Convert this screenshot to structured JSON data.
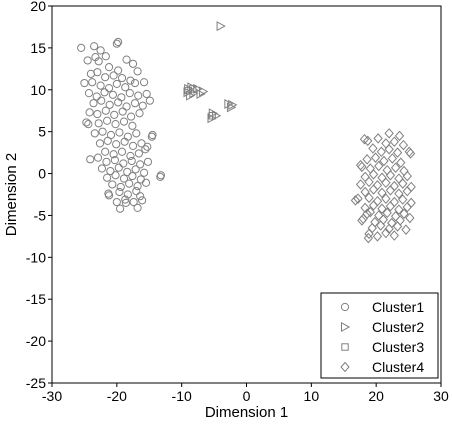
{
  "chart_data": {
    "type": "scatter",
    "title": "",
    "xlabel": "Dimension 1",
    "ylabel": "Dimension 2",
    "xlim": [
      -30,
      30
    ],
    "ylim": [
      -25,
      20
    ],
    "xticks": [
      -30,
      -20,
      -10,
      0,
      10,
      20,
      30
    ],
    "yticks": [
      -25,
      -20,
      -15,
      -10,
      -5,
      0,
      5,
      10,
      15,
      20
    ],
    "grid": false,
    "legend_position": "bottom-right",
    "marker_color": "#808080",
    "series": [
      {
        "name": "Cluster1",
        "marker": "circle",
        "points": [
          [
            -25.5,
            15
          ],
          [
            -23.5,
            15.2
          ],
          [
            -22.5,
            14.7
          ],
          [
            -21.7,
            14
          ],
          [
            -20,
            15.5
          ],
          [
            -19.8,
            15.7
          ],
          [
            -24.5,
            13.5
          ],
          [
            -23.3,
            13.9
          ],
          [
            -22.8,
            13.4
          ],
          [
            -21.2,
            12.7
          ],
          [
            -19.8,
            12.3
          ],
          [
            -18.5,
            13.6
          ],
          [
            -17.5,
            13.1
          ],
          [
            -24,
            11.9
          ],
          [
            -23,
            12.1
          ],
          [
            -21.8,
            11.5
          ],
          [
            -20.5,
            11.7
          ],
          [
            -19.2,
            11.4
          ],
          [
            -17.9,
            11.1
          ],
          [
            -16.8,
            12.2
          ],
          [
            -25,
            10.8
          ],
          [
            -23.8,
            10.9
          ],
          [
            -22.5,
            10.5
          ],
          [
            -21.2,
            10.2
          ],
          [
            -20,
            10.7
          ],
          [
            -18.7,
            10.3
          ],
          [
            -17.2,
            10.8
          ],
          [
            -15.8,
            10.9
          ],
          [
            -24.3,
            9.6
          ],
          [
            -23.1,
            9.2
          ],
          [
            -21.9,
            9.7
          ],
          [
            -20.6,
            9.4
          ],
          [
            -19.3,
            9.1
          ],
          [
            -18,
            9.6
          ],
          [
            -16.7,
            9.3
          ],
          [
            -15.4,
            9.5
          ],
          [
            -14.9,
            8.7
          ],
          [
            -23.6,
            8.4
          ],
          [
            -22.4,
            8.7
          ],
          [
            -21.1,
            8.2
          ],
          [
            -19.8,
            8.5
          ],
          [
            -18.5,
            8
          ],
          [
            -17.2,
            8.4
          ],
          [
            -16,
            8.1
          ],
          [
            -24.2,
            7.3
          ],
          [
            -23,
            7.1
          ],
          [
            -21.7,
            7.5
          ],
          [
            -20.4,
            7
          ],
          [
            -19.1,
            7.4
          ],
          [
            -17.8,
            6.8
          ],
          [
            -16.5,
            7.2
          ],
          [
            -22.8,
            6
          ],
          [
            -21.5,
            6.3
          ],
          [
            -20.2,
            5.9
          ],
          [
            -18.9,
            6.2
          ],
          [
            -17.6,
            5.7
          ],
          [
            -24.4,
            5.9
          ],
          [
            -24.7,
            6.1
          ],
          [
            -23.4,
            4.8
          ],
          [
            -22.2,
            5
          ],
          [
            -20.9,
            4.6
          ],
          [
            -19.6,
            4.9
          ],
          [
            -18.3,
            4.4
          ],
          [
            -17,
            4.8
          ],
          [
            -14.5,
            4.6
          ],
          [
            -14.6,
            4.4
          ],
          [
            -22.6,
            3.6
          ],
          [
            -21.4,
            3.9
          ],
          [
            -20.1,
            3.5
          ],
          [
            -18.8,
            3.8
          ],
          [
            -17.5,
            3.3
          ],
          [
            -16.2,
            3.6
          ],
          [
            -15.3,
            3.2
          ],
          [
            -21.8,
            2.6
          ],
          [
            -20.5,
            2.3
          ],
          [
            -19.2,
            2.6
          ],
          [
            -17.9,
            2.1
          ],
          [
            -16.6,
            2.4
          ],
          [
            -15.6,
            2.9
          ],
          [
            -24.1,
            1.7
          ],
          [
            -22.9,
            1.9
          ],
          [
            -21.6,
            1.4
          ],
          [
            -20.3,
            1.6
          ],
          [
            -19,
            1.2
          ],
          [
            -17.7,
            1.5
          ],
          [
            -16.4,
            1.1
          ],
          [
            -15.2,
            1.4
          ],
          [
            -22.3,
            0.6
          ],
          [
            -21,
            0.3
          ],
          [
            -19.7,
            0.7
          ],
          [
            -18.4,
            0.2
          ],
          [
            -17.1,
            0.5
          ],
          [
            -15.8,
            0.1
          ],
          [
            -21.5,
            -0.5
          ],
          [
            -20.2,
            -0.2
          ],
          [
            -18.9,
            -0.6
          ],
          [
            -17.6,
            -0.3
          ],
          [
            -16.3,
            -0.7
          ],
          [
            -13.2,
            -0.2
          ],
          [
            -13.3,
            -0.4
          ],
          [
            -20.7,
            -1.3
          ],
          [
            -19.4,
            -1.6
          ],
          [
            -18.1,
            -1.2
          ],
          [
            -16.8,
            -1.5
          ],
          [
            -15.5,
            -1.1
          ],
          [
            -21.3,
            -2.4
          ],
          [
            -21.2,
            -2.6
          ],
          [
            -19.6,
            -2.2
          ],
          [
            -18.3,
            -2.5
          ],
          [
            -17,
            -2.1
          ],
          [
            -16.4,
            -2.7
          ],
          [
            -20,
            -3.4
          ],
          [
            -18.7,
            -3.1
          ],
          [
            -18.6,
            -3.5
          ],
          [
            -17.4,
            -3.4
          ],
          [
            -16.1,
            -3.2
          ],
          [
            -19.5,
            -4.2
          ],
          [
            -16.8,
            -4.1
          ]
        ]
      },
      {
        "name": "Cluster2",
        "marker": "triangle-right",
        "points": [
          [
            -4,
            17.6
          ],
          [
            -9,
            10.1
          ],
          [
            -8.5,
            10.3
          ],
          [
            -7.6,
            10.1
          ],
          [
            -6.7,
            9.8
          ],
          [
            -8.2,
            9.6
          ],
          [
            -7.1,
            9.5
          ],
          [
            -9.1,
            9.7
          ],
          [
            -8.7,
            9.3
          ],
          [
            -5.2,
            7.2
          ],
          [
            -4.7,
            6.9
          ],
          [
            -5.4,
            6.6
          ],
          [
            -2.8,
            8.3
          ],
          [
            -2.2,
            8.2
          ],
          [
            -2.4,
            7.9
          ]
        ]
      },
      {
        "name": "Cluster3",
        "marker": "square",
        "points": [
          [
            -9,
            9.9
          ],
          [
            -8.3,
            10.1
          ],
          [
            -5.3,
            6.9
          ]
        ]
      },
      {
        "name": "Cluster4",
        "marker": "diamond",
        "points": [
          [
            22,
            4.8
          ],
          [
            23.6,
            4.5
          ],
          [
            18.2,
            4.1
          ],
          [
            18.7,
            3.9
          ],
          [
            20.3,
            4.2
          ],
          [
            21.5,
            3.6
          ],
          [
            22.8,
            3.8
          ],
          [
            24.2,
            3.4
          ],
          [
            19.5,
            3
          ],
          [
            20.8,
            2.6
          ],
          [
            22,
            2.9
          ],
          [
            23.3,
            2.5
          ],
          [
            25.1,
            2.6
          ],
          [
            25.3,
            2.4
          ],
          [
            18.6,
            1.7
          ],
          [
            19.9,
            1.9
          ],
          [
            21.2,
            1.5
          ],
          [
            22.5,
            1.8
          ],
          [
            23.8,
            1.3
          ],
          [
            17.6,
            1
          ],
          [
            17.8,
            0.8
          ],
          [
            19.1,
            0.6
          ],
          [
            20.4,
            0.9
          ],
          [
            21.7,
            0.4
          ],
          [
            23,
            0.7
          ],
          [
            24.3,
            0.3
          ],
          [
            18.3,
            -0.4
          ],
          [
            19.6,
            -0.1
          ],
          [
            20.9,
            -0.5
          ],
          [
            22.2,
            -0.2
          ],
          [
            23.5,
            -0.6
          ],
          [
            24.8,
            -0.3
          ],
          [
            17.6,
            -1.3
          ],
          [
            18.9,
            -1
          ],
          [
            20.2,
            -1.4
          ],
          [
            21.5,
            -1.1
          ],
          [
            22.8,
            -1.5
          ],
          [
            24.1,
            -1.2
          ],
          [
            25.4,
            -1.6
          ],
          [
            18.3,
            -2.2
          ],
          [
            19.6,
            -1.9
          ],
          [
            20.9,
            -2.3
          ],
          [
            22.2,
            -2
          ],
          [
            23.5,
            -2.4
          ],
          [
            24.8,
            -2.1
          ],
          [
            17.2,
            -3
          ],
          [
            16.8,
            -3.2
          ],
          [
            18.9,
            -2.9
          ],
          [
            20.2,
            -3.3
          ],
          [
            21.5,
            -3
          ],
          [
            22.8,
            -3.4
          ],
          [
            24.1,
            -3.1
          ],
          [
            25.4,
            -3.5
          ],
          [
            18.3,
            -4.1
          ],
          [
            19.6,
            -3.8
          ],
          [
            20.9,
            -4.2
          ],
          [
            22.2,
            -3.9
          ],
          [
            23.5,
            -4.3
          ],
          [
            24.8,
            -4
          ],
          [
            18.6,
            -4.8
          ],
          [
            19.1,
            -4.6
          ],
          [
            20.4,
            -5
          ],
          [
            21.7,
            -4.7
          ],
          [
            23,
            -5.1
          ],
          [
            24.3,
            -4.8
          ],
          [
            18,
            -5.4
          ],
          [
            17.8,
            -5.6
          ],
          [
            19.8,
            -5.8
          ],
          [
            21.1,
            -5.5
          ],
          [
            22.4,
            -5.9
          ],
          [
            23.7,
            -5.6
          ],
          [
            25.2,
            -5.3
          ],
          [
            19.4,
            -6.5
          ],
          [
            20.7,
            -6.2
          ],
          [
            22,
            -6.6
          ],
          [
            23.3,
            -6.3
          ],
          [
            24.6,
            -6.7
          ],
          [
            18.9,
            -7.2
          ],
          [
            20.2,
            -7.5
          ],
          [
            21.5,
            -7.1
          ],
          [
            22.8,
            -7.4
          ],
          [
            18.8,
            -7.7
          ]
        ]
      }
    ]
  }
}
